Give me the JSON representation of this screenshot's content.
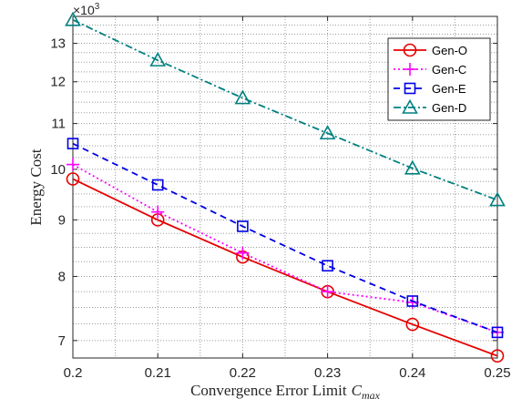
{
  "chart_data": {
    "type": "line",
    "xlabel": "Convergence Error Limit",
    "xlabel_symbol": "C",
    "xlabel_subscript": "max",
    "ylabel": "Energy Cost",
    "y_exponent_base": "×10",
    "y_exponent_power": "3",
    "y_scale": "log",
    "xlim": [
      0.2,
      0.25
    ],
    "ylim": [
      6.75,
      13.75
    ],
    "x_ticks": [
      "0.2",
      "0.21",
      "0.22",
      "0.23",
      "0.24",
      "0.25"
    ],
    "y_ticks": [
      "7",
      "8",
      "9",
      "10",
      "11",
      "12",
      "13"
    ],
    "grid": "dotted major and minor",
    "legend_position": "top-right",
    "x": [
      0.2,
      0.21,
      0.22,
      0.23,
      0.24,
      0.25
    ],
    "series": [
      {
        "name": "Gen-O",
        "values": [
          9.8,
          9.0,
          8.33,
          7.75,
          7.24,
          6.78
        ],
        "color": "#e60000",
        "marker": "circle",
        "line": "solid"
      },
      {
        "name": "Gen-C",
        "values": [
          10.1,
          9.15,
          8.4,
          7.75,
          7.58,
          7.12
        ],
        "color": "#ff00ff",
        "marker": "plus",
        "line": "dotted"
      },
      {
        "name": "Gen-E",
        "values": [
          10.55,
          9.68,
          8.88,
          8.18,
          7.6,
          7.12
        ],
        "color": "#0000e6",
        "marker": "square",
        "line": "dashed"
      },
      {
        "name": "Gen-D",
        "values": [
          13.65,
          12.55,
          11.6,
          10.78,
          10.02,
          9.38
        ],
        "color": "#008080",
        "marker": "triangle",
        "line": "dashdot"
      }
    ]
  }
}
